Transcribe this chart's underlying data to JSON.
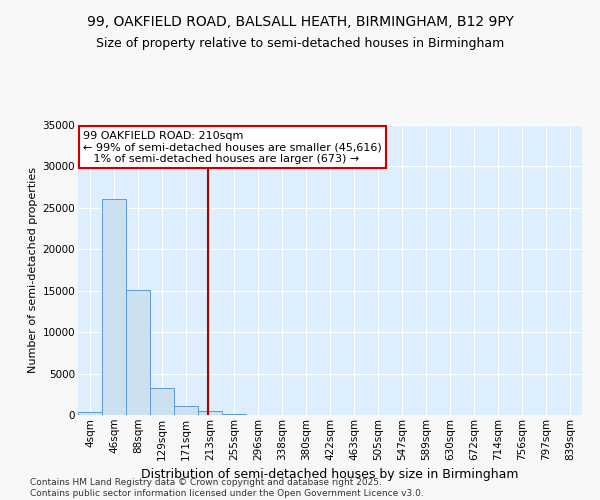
{
  "title_line1": "99, OAKFIELD ROAD, BALSALL HEATH, BIRMINGHAM, B12 9PY",
  "title_line2": "Size of property relative to semi-detached houses in Birmingham",
  "xlabel": "Distribution of semi-detached houses by size in Birmingham",
  "ylabel": "Number of semi-detached properties",
  "footnote": "Contains HM Land Registry data © Crown copyright and database right 2025.\nContains public sector information licensed under the Open Government Licence v3.0.",
  "bar_color": "#cce0f0",
  "bar_edge_color": "#5b9bd5",
  "categories": [
    "4sqm",
    "46sqm",
    "88sqm",
    "129sqm",
    "171sqm",
    "213sqm",
    "255sqm",
    "296sqm",
    "338sqm",
    "380sqm",
    "422sqm",
    "463sqm",
    "505sqm",
    "547sqm",
    "589sqm",
    "630sqm",
    "672sqm",
    "714sqm",
    "756sqm",
    "797sqm",
    "839sqm"
  ],
  "values": [
    400,
    26100,
    15100,
    3300,
    1100,
    450,
    150,
    0,
    0,
    0,
    0,
    0,
    0,
    0,
    0,
    0,
    0,
    0,
    0,
    0,
    0
  ],
  "ylim": [
    0,
    35000
  ],
  "yticks": [
    0,
    5000,
    10000,
    15000,
    20000,
    25000,
    30000,
    35000
  ],
  "vline_index": 4.93,
  "vline_color": "#aa0000",
  "annotation_text": "99 OAKFIELD ROAD: 210sqm\n← 99% of semi-detached houses are smaller (45,616)\n   1% of semi-detached houses are larger (673) →",
  "annotation_box_color": "#ffffff",
  "annotation_box_edge_color": "#cc0000",
  "background_color": "#ddeeff",
  "plot_bg_color": "#ddeeff",
  "fig_bg_color": "#f8f8f8",
  "grid_color": "#ffffff",
  "title_fontsize": 10,
  "subtitle_fontsize": 9,
  "tick_fontsize": 7.5,
  "ylabel_fontsize": 8,
  "xlabel_fontsize": 9,
  "annotation_fontsize": 8,
  "footnote_fontsize": 6.5
}
